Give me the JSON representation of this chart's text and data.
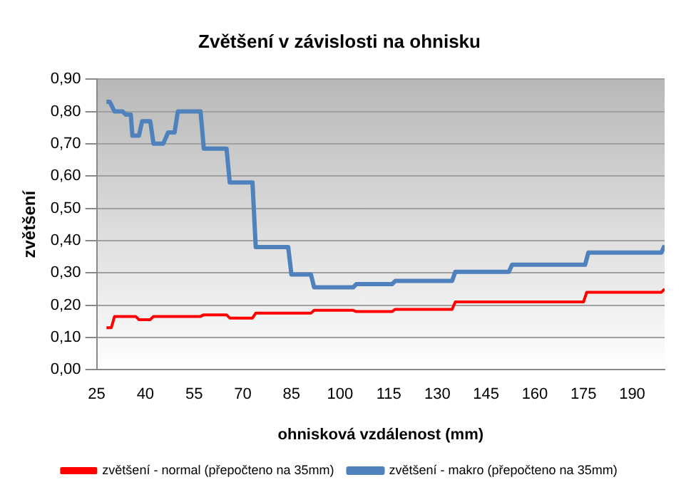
{
  "chart_data": {
    "type": "line",
    "title": "Zvětšení v závislosti na ohnisku",
    "xlabel": "ohnisková vzdálenost (mm)",
    "ylabel": "zvětšení",
    "xlim": [
      25,
      200
    ],
    "xticks": [
      25,
      40,
      55,
      70,
      85,
      100,
      115,
      130,
      145,
      160,
      175,
      190
    ],
    "ylim": [
      0,
      0.9
    ],
    "yticks": [
      {
        "value": 0,
        "label": "0,00"
      },
      {
        "value": 0.1,
        "label": "0,10"
      },
      {
        "value": 0.2,
        "label": "0,20"
      },
      {
        "value": 0.3,
        "label": "0,30"
      },
      {
        "value": 0.4,
        "label": "0,40"
      },
      {
        "value": 0.5,
        "label": "0,50"
      },
      {
        "value": 0.6,
        "label": "0,60"
      },
      {
        "value": 0.7,
        "label": "0,70"
      },
      {
        "value": 0.8,
        "label": "0,80"
      },
      {
        "value": 0.9,
        "label": "0,90"
      }
    ],
    "grid": "y",
    "legend": "bottom",
    "marker": "none",
    "line_style": "solid",
    "series": [
      {
        "name": "zvětšení - normal (přepočteno na 35mm)",
        "color": "#ff0000",
        "x": [
          28,
          29.5,
          30.5,
          37,
          38,
          41.5,
          42.5,
          57,
          58,
          65,
          66,
          73,
          74,
          91,
          92,
          104,
          105,
          116,
          117,
          134.5,
          135.5,
          175,
          176,
          199,
          200
        ],
        "values": [
          0.13,
          0.13,
          0.165,
          0.165,
          0.155,
          0.155,
          0.165,
          0.165,
          0.17,
          0.17,
          0.16,
          0.16,
          0.175,
          0.175,
          0.184,
          0.184,
          0.18,
          0.18,
          0.187,
          0.187,
          0.21,
          0.21,
          0.24,
          0.24,
          0.25
        ]
      },
      {
        "name": "zvětšení - makro (přepočteno na 35mm)",
        "color": "#4f81bd",
        "x": [
          28,
          29,
          30.5,
          33,
          34,
          35.5,
          36,
          38,
          39,
          41.5,
          42.5,
          45.5,
          47,
          49,
          50,
          57,
          58,
          65,
          66,
          73,
          74,
          84,
          85,
          91,
          92,
          104,
          105,
          116,
          117,
          134.5,
          135.5,
          152,
          153,
          175.5,
          176.5,
          199,
          200
        ],
        "values": [
          0.83,
          0.83,
          0.8,
          0.8,
          0.79,
          0.79,
          0.725,
          0.725,
          0.77,
          0.77,
          0.7,
          0.7,
          0.735,
          0.735,
          0.8,
          0.8,
          0.685,
          0.685,
          0.58,
          0.58,
          0.38,
          0.38,
          0.295,
          0.295,
          0.255,
          0.255,
          0.265,
          0.265,
          0.275,
          0.275,
          0.303,
          0.303,
          0.325,
          0.325,
          0.363,
          0.363,
          0.385
        ]
      }
    ]
  }
}
